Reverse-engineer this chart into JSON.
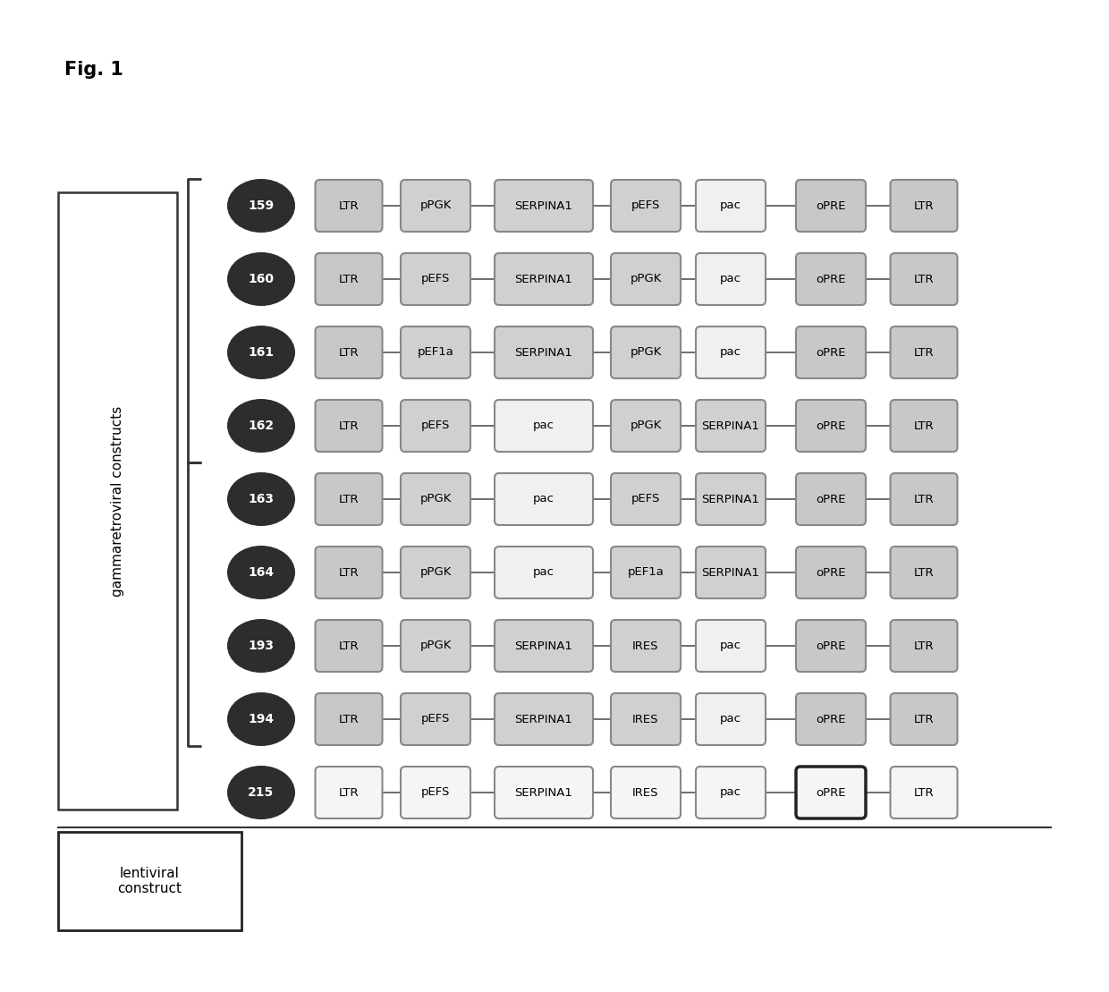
{
  "fig_label": "Fig. 1",
  "constructs": [
    {
      "id": "159",
      "type": "gamma",
      "elements": [
        "LTR",
        "pPGK",
        "SERPINA1",
        "pEFS",
        "pac",
        "oPRE",
        "LTR"
      ]
    },
    {
      "id": "160",
      "type": "gamma",
      "elements": [
        "LTR",
        "pEFS",
        "SERPINA1",
        "pPGK",
        "pac",
        "oPRE",
        "LTR"
      ]
    },
    {
      "id": "161",
      "type": "gamma",
      "elements": [
        "LTR",
        "pEF1a",
        "SERPINA1",
        "pPGK",
        "pac",
        "oPRE",
        "LTR"
      ]
    },
    {
      "id": "162",
      "type": "gamma",
      "elements": [
        "LTR",
        "pEFS",
        "pac",
        "pPGK",
        "SERPINA1",
        "oPRE",
        "LTR"
      ]
    },
    {
      "id": "163",
      "type": "gamma",
      "elements": [
        "LTR",
        "pPGK",
        "pac",
        "pEFS",
        "SERPINA1",
        "oPRE",
        "LTR"
      ]
    },
    {
      "id": "164",
      "type": "gamma",
      "elements": [
        "LTR",
        "pPGK",
        "pac",
        "pEF1a",
        "SERPINA1",
        "oPRE",
        "LTR"
      ]
    },
    {
      "id": "193",
      "type": "gamma",
      "elements": [
        "LTR",
        "pPGK",
        "SERPINA1",
        "IRES",
        "pac",
        "oPRE",
        "LTR"
      ]
    },
    {
      "id": "194",
      "type": "gamma",
      "elements": [
        "LTR",
        "pEFS",
        "SERPINA1",
        "IRES",
        "pac",
        "oPRE",
        "LTR"
      ]
    },
    {
      "id": "215",
      "type": "lenti",
      "elements": [
        "LTR",
        "pEFS",
        "SERPINA1",
        "IRES",
        "pac",
        "oPRE",
        "LTR"
      ]
    }
  ],
  "gamma_label": "gammaretroviral constructs",
  "lenti_label": "lentiviral\nconstruct",
  "background_color": "#ffffff",
  "text_color_dark": "#000000",
  "text_color_white": "#ffffff",
  "circle_color": "#2d2d2d",
  "connector_color": "#555555",
  "box_gray": "#d0d0d0",
  "box_light": "#e8e8e8",
  "box_white": "#f5f5f5",
  "box_medium": "#c0c0c0"
}
